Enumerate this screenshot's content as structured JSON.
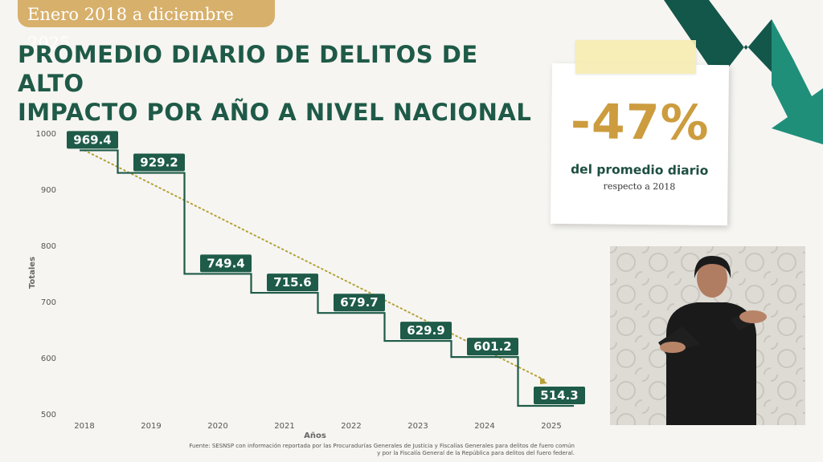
{
  "header": {
    "date_range": "Enero 2018 a diciembre 2025",
    "title_line1": "PROMEDIO DIARIO DE DELITOS DE ALTO",
    "title_line2": "IMPACTO POR AÑO A NIVEL NACIONAL"
  },
  "chart_data": {
    "type": "line",
    "step": true,
    "x": [
      "2018",
      "2019",
      "2020",
      "2021",
      "2022",
      "2023",
      "2024",
      "2025"
    ],
    "y": [
      969.4,
      929.2,
      749.4,
      715.6,
      679.7,
      629.9,
      601.2,
      514.3
    ],
    "data_labels": [
      "969.4",
      "929.2",
      "749.4",
      "715.6",
      "679.7",
      "629.9",
      "601.2",
      "514.3"
    ],
    "xlabel": "Años",
    "ylabel": "Totales",
    "ylim": [
      500,
      1000
    ],
    "yticks": [
      "500",
      "600",
      "700",
      "800",
      "900",
      "1000"
    ],
    "trendline": {
      "from": 969.4,
      "to": 560,
      "style": "dotted"
    },
    "grid": false,
    "colors": {
      "step_line": "#1e5b48",
      "label_bg": "#1e5b48",
      "label_text": "#ffffff",
      "trend": "#b5a13a"
    }
  },
  "callout": {
    "percent": "-47%",
    "line1": "del promedio diario",
    "line2": "respecto a 2018",
    "colors": {
      "percent": "#cc9c3e",
      "text": "#1e4f41"
    }
  },
  "source": {
    "line1": "Fuente: SESNSP con información reportada por las Procuradurías Generales de Justicia y Fiscalías Generales para delitos de  fuero común",
    "line2": "y por la Fiscalía General de la República para delitos del fuero federal."
  },
  "colors": {
    "accent_gold": "#d7b06b",
    "brand_green": "#1f5a48",
    "teal": "#1f8f7a"
  }
}
